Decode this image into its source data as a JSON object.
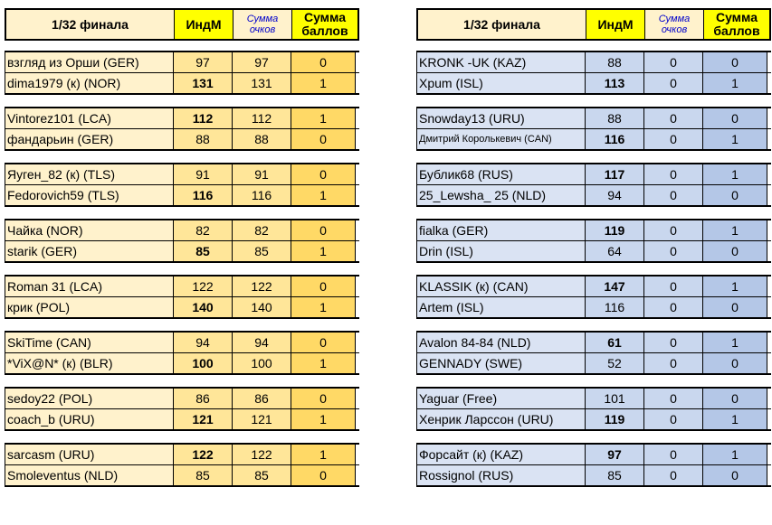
{
  "left": {
    "header": {
      "name": "1/32 финала",
      "ind": "ИндМ",
      "pts": [
        "Сумма",
        "очков"
      ],
      "sum": [
        "Сумма",
        "баллов"
      ]
    },
    "groups": [
      [
        {
          "name": "взгляд из Орши (GER)",
          "ind": "97",
          "pts": "97",
          "sum": "0",
          "bold": false
        },
        {
          "name": "dima1979 (к) (NOR)",
          "ind": "131",
          "pts": "131",
          "sum": "1",
          "bold": true
        }
      ],
      [
        {
          "name": "Vintorez101 (LCA)",
          "ind": "112",
          "pts": "112",
          "sum": "1",
          "bold": true
        },
        {
          "name": "фандарьин (GER)",
          "ind": "88",
          "pts": "88",
          "sum": "0",
          "bold": false
        }
      ],
      [
        {
          "name": "Яуген_82 (к) (TLS)",
          "ind": "91",
          "pts": "91",
          "sum": "0",
          "bold": false
        },
        {
          "name": "Fedorovich59 (TLS)",
          "ind": "116",
          "pts": "116",
          "sum": "1",
          "bold": true
        }
      ],
      [
        {
          "name": "Чайка (NOR)",
          "ind": "82",
          "pts": "82",
          "sum": "0",
          "bold": false
        },
        {
          "name": "starik (GER)",
          "ind": "85",
          "pts": "85",
          "sum": "1",
          "bold": true
        }
      ],
      [
        {
          "name": "Roman 31 (LCA)",
          "ind": "122",
          "pts": "122",
          "sum": "0",
          "bold": false
        },
        {
          "name": "крик (POL)",
          "ind": "140",
          "pts": "140",
          "sum": "1",
          "bold": true
        }
      ],
      [
        {
          "name": "SkiTime (CAN)",
          "ind": "94",
          "pts": "94",
          "sum": "0",
          "bold": false
        },
        {
          "name": "*ViX@N* (к) (BLR)",
          "ind": "100",
          "pts": "100",
          "sum": "1",
          "bold": true
        }
      ],
      [
        {
          "name": "sedoy22 (POL)",
          "ind": "86",
          "pts": "86",
          "sum": "0",
          "bold": false
        },
        {
          "name": "coach_b (URU)",
          "ind": "121",
          "pts": "121",
          "sum": "1",
          "bold": true
        }
      ],
      [
        {
          "name": "sarcasm (URU)",
          "ind": "122",
          "pts": "122",
          "sum": "1",
          "bold": true
        },
        {
          "name": "Smoleventus (NLD)",
          "ind": "85",
          "pts": "85",
          "sum": "0",
          "bold": false
        }
      ]
    ]
  },
  "right": {
    "header": {
      "name": "1/32 финала",
      "ind": "ИндМ",
      "pts": [
        "Сумма",
        "очков"
      ],
      "sum": [
        "Сумма",
        "баллов"
      ]
    },
    "groups": [
      [
        {
          "name": "KRONK -UK (KAZ)",
          "ind": "88",
          "pts": "0",
          "sum": "0",
          "bold": false
        },
        {
          "name": "Xpum (ISL)",
          "ind": "113",
          "pts": "0",
          "sum": "1",
          "bold": true
        }
      ],
      [
        {
          "name": "Snowday13 (URU)",
          "ind": "88",
          "pts": "0",
          "sum": "0",
          "bold": false
        },
        {
          "name": "Дмитрий Королькевич (CAN)",
          "ind": "116",
          "pts": "0",
          "sum": "1",
          "bold": true,
          "small": true
        }
      ],
      [
        {
          "name": "Бублик68 (RUS)",
          "ind": "117",
          "pts": "0",
          "sum": "1",
          "bold": true
        },
        {
          "name": "25_Lewsha_ 25 (NLD)",
          "ind": "94",
          "pts": "0",
          "sum": "0",
          "bold": false
        }
      ],
      [
        {
          "name": "fialka (GER)",
          "ind": "119",
          "pts": "0",
          "sum": "1",
          "bold": true
        },
        {
          "name": "Drin (ISL)",
          "ind": "64",
          "pts": "0",
          "sum": "0",
          "bold": false
        }
      ],
      [
        {
          "name": "KLASSIK (к) (CAN)",
          "ind": "147",
          "pts": "0",
          "sum": "1",
          "bold": true
        },
        {
          "name": "Artem (ISL)",
          "ind": "116",
          "pts": "0",
          "sum": "0",
          "bold": false
        }
      ],
      [
        {
          "name": "Avalon 84-84 (NLD)",
          "ind": "61",
          "pts": "0",
          "sum": "1",
          "bold": true
        },
        {
          "name": "GENNADY (SWE)",
          "ind": "52",
          "pts": "0",
          "sum": "0",
          "bold": false
        }
      ],
      [
        {
          "name": "Yaguar (Free)",
          "ind": "101",
          "pts": "0",
          "sum": "0",
          "bold": false
        },
        {
          "name": "Хенрик Ларссон (URU)",
          "ind": "119",
          "pts": "0",
          "sum": "1",
          "bold": true
        }
      ],
      [
        {
          "name": "Форсайт (к) (KAZ)",
          "ind": "97",
          "pts": "0",
          "sum": "1",
          "bold": true
        },
        {
          "name": "Rossignol (RUS)",
          "ind": "85",
          "pts": "0",
          "sum": "0",
          "bold": false
        }
      ]
    ]
  },
  "colors": {
    "header_bg": "#fff2cc",
    "header_accent": "#ffff00",
    "italic_text": "#0000cc",
    "left_shades": [
      "#fff2cc",
      "#ffe699",
      "#ffd966"
    ],
    "right_shades": [
      "#dae3f3",
      "#c9d7ee",
      "#b4c7e7"
    ]
  }
}
